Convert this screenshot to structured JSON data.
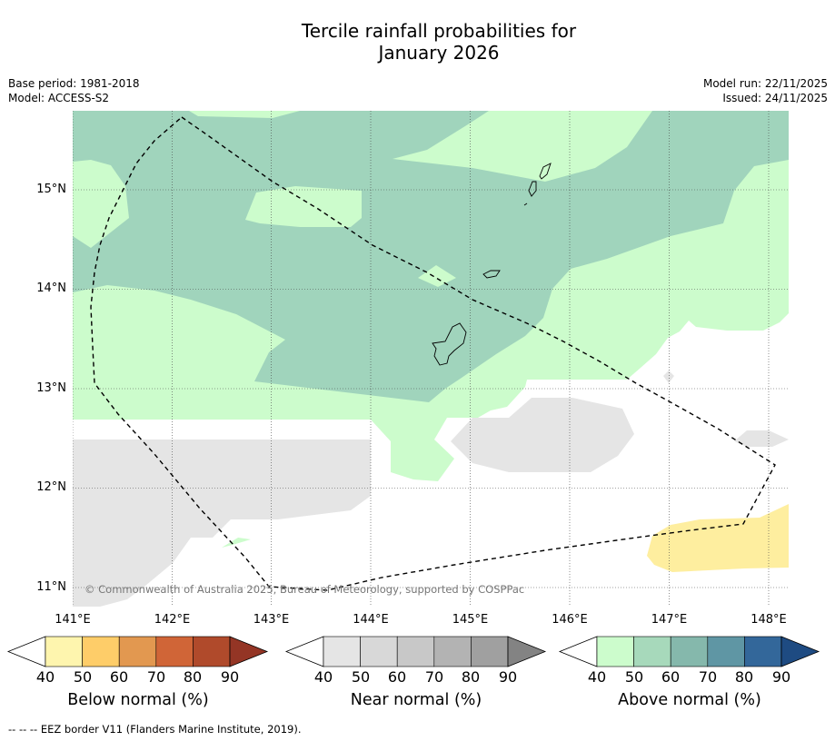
{
  "title": {
    "line1": "Tercile rainfall probabilities for",
    "line2": "January 2026"
  },
  "meta_left": {
    "base_period": "Base period: 1981-2018",
    "model": "Model: ACCESS-S2"
  },
  "meta_right": {
    "model_run": "Model run: 22/11/2025",
    "issued": "Issued: 24/11/2025"
  },
  "map": {
    "latitude_labels": [
      "15°N",
      "14°N",
      "13°N",
      "12°N",
      "11°N"
    ],
    "longitude_labels": [
      "141°E",
      "142°E",
      "143°E",
      "144°E",
      "145°E",
      "146°E",
      "147°E",
      "148°E"
    ],
    "copyright": "© Commonwealth of Australia 2025, Bureau of Meteorology, supported by COSPPac",
    "fill_colors": {
      "above_40_50": "#ccfccc",
      "above_50_60": "#a0d4bc",
      "near_40_50": "#e5e5e5",
      "below_40_50": "#feee9f",
      "no_signal": "#ffffff"
    }
  },
  "colorbars": [
    {
      "label": "Below normal (%)",
      "ticks": [
        "40",
        "50",
        "60",
        "70",
        "80",
        "90"
      ],
      "colors": [
        "#fef5ae",
        "#fecd69",
        "#e29850",
        "#d06537",
        "#b04a2b",
        "#943525"
      ]
    },
    {
      "label": "Near normal (%)",
      "ticks": [
        "40",
        "50",
        "60",
        "70",
        "80",
        "90"
      ],
      "colors": [
        "#e5e5e5",
        "#d8d8d8",
        "#c8c8c8",
        "#b3b3b3",
        "#a0a0a0",
        "#838383"
      ]
    },
    {
      "label": "Above normal (%)",
      "ticks": [
        "40",
        "50",
        "60",
        "70",
        "80",
        "90"
      ],
      "colors": [
        "#ccfccc",
        "#a7d9bb",
        "#85b8ac",
        "#5f96a4",
        "#33679a",
        "#1e4b82"
      ]
    }
  ],
  "footnote": "--  --  -- EEZ border V11 (Flanders Marine Institute, 2019)."
}
